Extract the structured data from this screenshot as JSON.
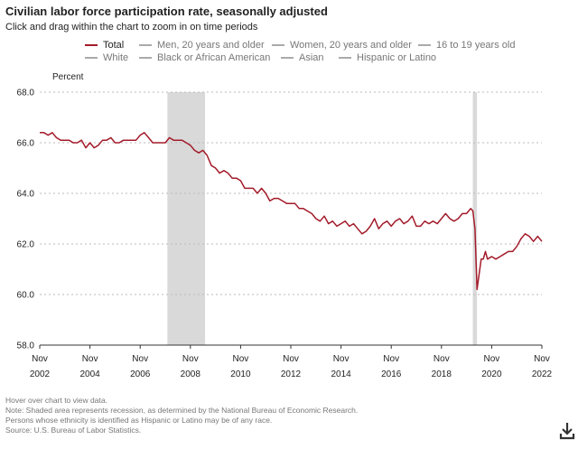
{
  "header": {
    "title": "Civilian labor force participation rate, seasonally adjusted",
    "subtitle": "Click and drag within the chart to zoom in on time periods"
  },
  "legend": [
    {
      "label": "Total",
      "active": true,
      "color": "#a31b2a"
    },
    {
      "label": "Men, 20 years and older",
      "active": false,
      "color": "#aaaaaa"
    },
    {
      "label": "Women, 20 years and older",
      "active": false,
      "color": "#aaaaaa"
    },
    {
      "label": "16 to 19 years old",
      "active": false,
      "color": "#aaaaaa"
    },
    {
      "label": "White",
      "active": false,
      "color": "#aaaaaa"
    },
    {
      "label": "Black or African American",
      "active": false,
      "color": "#aaaaaa"
    },
    {
      "label": "Asian",
      "active": false,
      "color": "#aaaaaa"
    },
    {
      "label": "Hispanic or Latino",
      "active": false,
      "color": "#aaaaaa"
    }
  ],
  "notes": {
    "line1": "Hover over chart to view data.",
    "line2": "Note: Shaded area represents recession, as determined by the National Bureau of Economic Research.",
    "line3": "Persons whose ethnicity is identified as Hispanic or Latino may be of any race.",
    "line4": "Source: U.S. Bureau of Labor Statistics."
  },
  "icons": {
    "download": "download-icon"
  },
  "chart_data": {
    "type": "line",
    "title": "Civilian labor force participation rate, seasonally adjusted",
    "ylabel": "Percent",
    "ylim": [
      58.0,
      68.0
    ],
    "yticks": [
      "58.0",
      "60.0",
      "62.0",
      "64.0",
      "66.0",
      "68.0"
    ],
    "xlim": [
      2002.833,
      2022.833
    ],
    "xticks": [
      {
        "month": "Nov",
        "year": "2002"
      },
      {
        "month": "Nov",
        "year": "2004"
      },
      {
        "month": "Nov",
        "year": "2006"
      },
      {
        "month": "Nov",
        "year": "2008"
      },
      {
        "month": "Nov",
        "year": "2010"
      },
      {
        "month": "Nov",
        "year": "2012"
      },
      {
        "month": "Nov",
        "year": "2014"
      },
      {
        "month": "Nov",
        "year": "2016"
      },
      {
        "month": "Nov",
        "year": "2018"
      },
      {
        "month": "Nov",
        "year": "2020"
      },
      {
        "month": "Nov",
        "year": "2022"
      }
    ],
    "grid": true,
    "recessions": [
      {
        "start": "2007-12",
        "end": "2009-06"
      },
      {
        "start": "2020-02",
        "end": "2020-04"
      }
    ],
    "series": [
      {
        "name": "Total",
        "color": "#a31b2a",
        "points": [
          [
            "2002-11",
            66.4
          ],
          [
            "2003-01",
            66.4
          ],
          [
            "2003-03",
            66.3
          ],
          [
            "2003-05",
            66.4
          ],
          [
            "2003-07",
            66.2
          ],
          [
            "2003-09",
            66.1
          ],
          [
            "2003-11",
            66.1
          ],
          [
            "2004-01",
            66.1
          ],
          [
            "2004-03",
            66.0
          ],
          [
            "2004-05",
            66.0
          ],
          [
            "2004-07",
            66.1
          ],
          [
            "2004-09",
            65.8
          ],
          [
            "2004-11",
            66.0
          ],
          [
            "2005-01",
            65.8
          ],
          [
            "2005-03",
            65.9
          ],
          [
            "2005-05",
            66.1
          ],
          [
            "2005-07",
            66.1
          ],
          [
            "2005-09",
            66.2
          ],
          [
            "2005-11",
            66.0
          ],
          [
            "2006-01",
            66.0
          ],
          [
            "2006-03",
            66.1
          ],
          [
            "2006-05",
            66.1
          ],
          [
            "2006-07",
            66.1
          ],
          [
            "2006-09",
            66.1
          ],
          [
            "2006-11",
            66.3
          ],
          [
            "2007-01",
            66.4
          ],
          [
            "2007-03",
            66.2
          ],
          [
            "2007-05",
            66.0
          ],
          [
            "2007-07",
            66.0
          ],
          [
            "2007-09",
            66.0
          ],
          [
            "2007-11",
            66.0
          ],
          [
            "2008-01",
            66.2
          ],
          [
            "2008-03",
            66.1
          ],
          [
            "2008-05",
            66.1
          ],
          [
            "2008-07",
            66.1
          ],
          [
            "2008-09",
            66.0
          ],
          [
            "2008-11",
            65.9
          ],
          [
            "2009-01",
            65.7
          ],
          [
            "2009-03",
            65.6
          ],
          [
            "2009-05",
            65.7
          ],
          [
            "2009-07",
            65.5
          ],
          [
            "2009-09",
            65.1
          ],
          [
            "2009-11",
            65.0
          ],
          [
            "2010-01",
            64.8
          ],
          [
            "2010-03",
            64.9
          ],
          [
            "2010-05",
            64.8
          ],
          [
            "2010-07",
            64.6
          ],
          [
            "2010-09",
            64.6
          ],
          [
            "2010-11",
            64.5
          ],
          [
            "2011-01",
            64.2
          ],
          [
            "2011-03",
            64.2
          ],
          [
            "2011-05",
            64.2
          ],
          [
            "2011-07",
            64.0
          ],
          [
            "2011-09",
            64.2
          ],
          [
            "2011-11",
            64.0
          ],
          [
            "2012-01",
            63.7
          ],
          [
            "2012-03",
            63.8
          ],
          [
            "2012-05",
            63.8
          ],
          [
            "2012-07",
            63.7
          ],
          [
            "2012-09",
            63.6
          ],
          [
            "2012-11",
            63.6
          ],
          [
            "2013-01",
            63.6
          ],
          [
            "2013-03",
            63.4
          ],
          [
            "2013-05",
            63.4
          ],
          [
            "2013-07",
            63.3
          ],
          [
            "2013-09",
            63.2
          ],
          [
            "2013-11",
            63.0
          ],
          [
            "2014-01",
            62.9
          ],
          [
            "2014-03",
            63.1
          ],
          [
            "2014-05",
            62.8
          ],
          [
            "2014-07",
            62.9
          ],
          [
            "2014-09",
            62.7
          ],
          [
            "2014-11",
            62.8
          ],
          [
            "2015-01",
            62.9
          ],
          [
            "2015-03",
            62.7
          ],
          [
            "2015-05",
            62.8
          ],
          [
            "2015-07",
            62.6
          ],
          [
            "2015-09",
            62.4
          ],
          [
            "2015-11",
            62.5
          ],
          [
            "2016-01",
            62.7
          ],
          [
            "2016-03",
            63.0
          ],
          [
            "2016-05",
            62.6
          ],
          [
            "2016-07",
            62.8
          ],
          [
            "2016-09",
            62.9
          ],
          [
            "2016-11",
            62.7
          ],
          [
            "2017-01",
            62.9
          ],
          [
            "2017-03",
            63.0
          ],
          [
            "2017-05",
            62.8
          ],
          [
            "2017-07",
            62.9
          ],
          [
            "2017-09",
            63.1
          ],
          [
            "2017-11",
            62.7
          ],
          [
            "2018-01",
            62.7
          ],
          [
            "2018-03",
            62.9
          ],
          [
            "2018-05",
            62.8
          ],
          [
            "2018-07",
            62.9
          ],
          [
            "2018-09",
            62.8
          ],
          [
            "2018-11",
            63.0
          ],
          [
            "2019-01",
            63.2
          ],
          [
            "2019-03",
            63.0
          ],
          [
            "2019-05",
            62.9
          ],
          [
            "2019-07",
            63.0
          ],
          [
            "2019-09",
            63.2
          ],
          [
            "2019-11",
            63.2
          ],
          [
            "2020-01",
            63.4
          ],
          [
            "2020-02",
            63.3
          ],
          [
            "2020-03",
            62.6
          ],
          [
            "2020-04",
            60.2
          ],
          [
            "2020-05",
            60.8
          ],
          [
            "2020-06",
            61.4
          ],
          [
            "2020-07",
            61.4
          ],
          [
            "2020-08",
            61.7
          ],
          [
            "2020-09",
            61.4
          ],
          [
            "2020-11",
            61.5
          ],
          [
            "2021-01",
            61.4
          ],
          [
            "2021-03",
            61.5
          ],
          [
            "2021-05",
            61.6
          ],
          [
            "2021-07",
            61.7
          ],
          [
            "2021-09",
            61.7
          ],
          [
            "2021-11",
            61.9
          ],
          [
            "2022-01",
            62.2
          ],
          [
            "2022-03",
            62.4
          ],
          [
            "2022-05",
            62.3
          ],
          [
            "2022-07",
            62.1
          ],
          [
            "2022-09",
            62.3
          ],
          [
            "2022-11",
            62.1
          ]
        ]
      }
    ]
  }
}
